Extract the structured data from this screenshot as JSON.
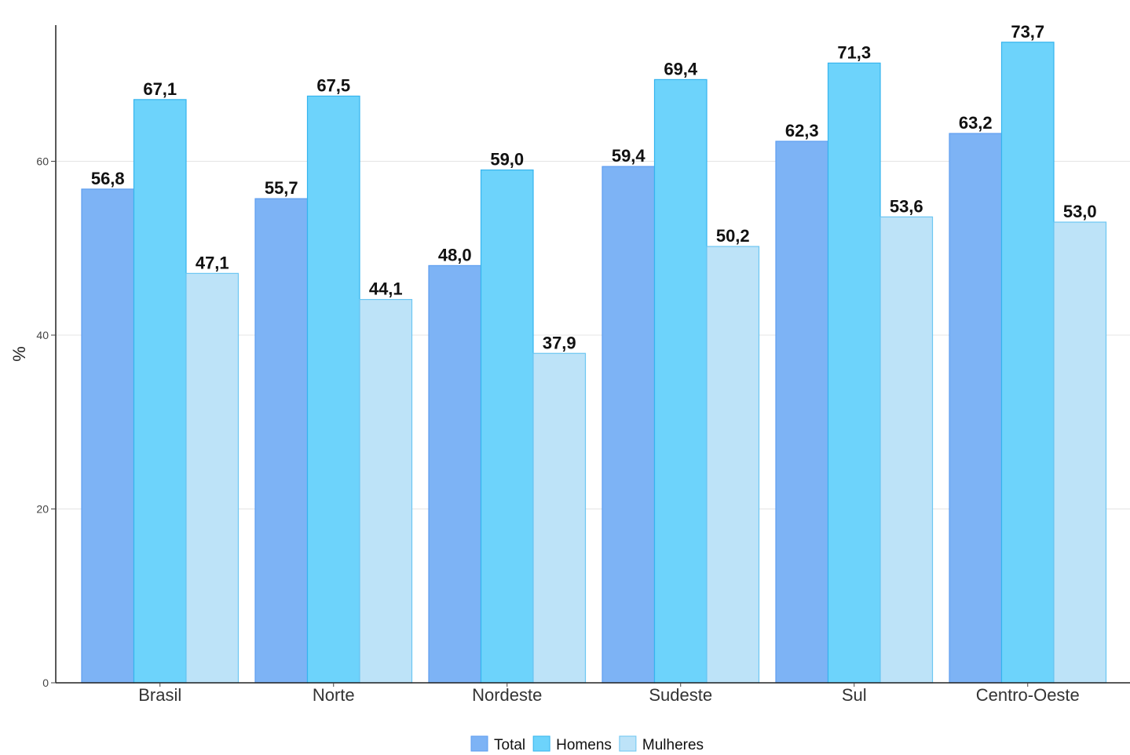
{
  "chart_data": {
    "type": "bar",
    "ylabel": "%",
    "xlabel": "",
    "ylim": [
      0,
      75
    ],
    "y_ticks": [
      0,
      20,
      40,
      60
    ],
    "grid": "horizontal",
    "legend_position": "bottom-center",
    "categories": [
      "Brasil",
      "Norte",
      "Nordeste",
      "Sudeste",
      "Sul",
      "Centro-Oeste"
    ],
    "series": [
      {
        "name": "Total",
        "color": "#7db3f5",
        "edge": "#5e9ef0",
        "values": [
          56.8,
          55.7,
          48.0,
          59.4,
          62.3,
          63.2
        ],
        "labels": [
          "56,8",
          "55,7",
          "48,0",
          "59,4",
          "62,3",
          "63,2"
        ]
      },
      {
        "name": "Homens",
        "color": "#6dd3fb",
        "edge": "#35b4ee",
        "values": [
          67.1,
          67.5,
          59.0,
          69.4,
          71.3,
          73.7
        ],
        "labels": [
          "67,1",
          "67,5",
          "59,0",
          "69,4",
          "71,3",
          "73,7"
        ]
      },
      {
        "name": "Mulheres",
        "color": "#bde3f8",
        "edge": "#6cc6f2",
        "values": [
          47.1,
          44.1,
          37.9,
          50.2,
          53.6,
          53.0
        ],
        "labels": [
          "47,1",
          "44,1",
          "37,9",
          "50,2",
          "53,6",
          "53,0"
        ]
      }
    ]
  }
}
